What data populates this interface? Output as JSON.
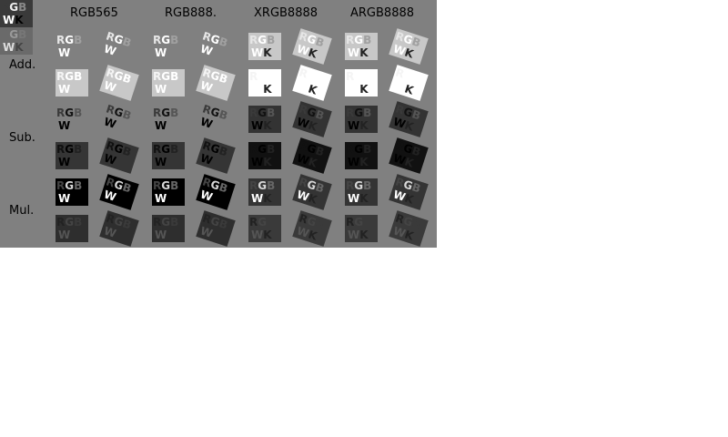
{
  "columns": [
    "RGB565",
    "RGB888.",
    "XRGB8888",
    "ARGB8888"
  ],
  "rows": [
    "Add.",
    "Sub.",
    "Mul."
  ],
  "glyphs": {
    "r": "R",
    "g": "G",
    "b": "B",
    "w": "W",
    "k": "K"
  }
}
